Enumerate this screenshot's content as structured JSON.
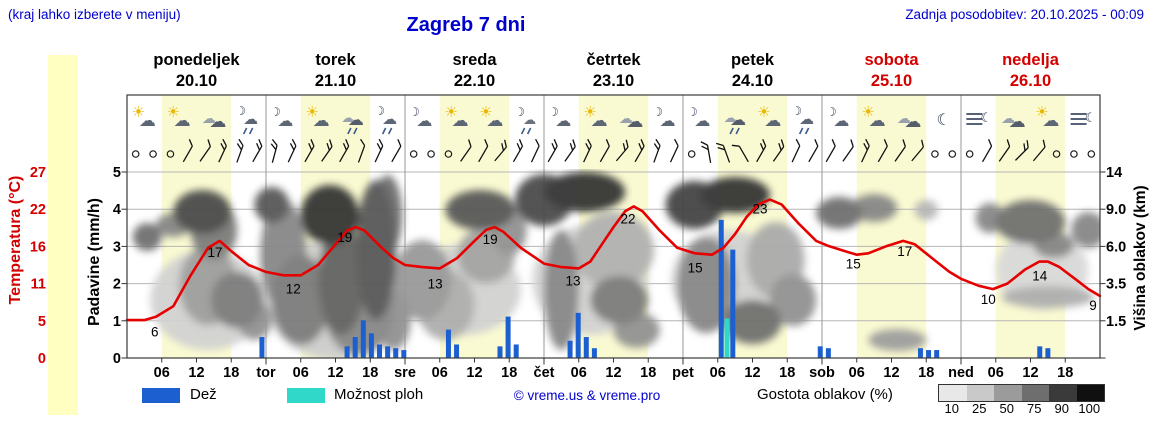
{
  "header": {
    "hint": "(kraj lahko izberete v meniju)",
    "title": "Zagreb 7 dni",
    "updated": "Zadnja posodobitev: 20.10.2025 - 00:09"
  },
  "days": [
    {
      "name": "ponedeljek",
      "date": "20.10",
      "weekend": false
    },
    {
      "name": "torek",
      "date": "21.10",
      "weekend": false
    },
    {
      "name": "sreda",
      "date": "22.10",
      "weekend": false
    },
    {
      "name": "četrtek",
      "date": "23.10",
      "weekend": false
    },
    {
      "name": "petek",
      "date": "24.10",
      "weekend": false
    },
    {
      "name": "sobota",
      "date": "25.10",
      "weekend": true
    },
    {
      "name": "nedelja",
      "date": "26.10",
      "weekend": true
    }
  ],
  "axis_titles": {
    "temperature": "Temperatura (°C)",
    "precipitation": "Padavine (mm/h)",
    "cloud_height": "Višina oblakov (km)"
  },
  "legend": {
    "rain_label": "Dež",
    "shower_label": "Možnost ploh",
    "copyright": "© vreme.us & vreme.pro",
    "cloud_label": "Gostota oblakov (%)",
    "cloud_scale": [
      {
        "label": "10",
        "color": "#e8e8e8"
      },
      {
        "label": "25",
        "color": "#c9c9c9"
      },
      {
        "label": "50",
        "color": "#9b9b9b"
      },
      {
        "label": "75",
        "color": "#6e6e6e"
      },
      {
        "label": "90",
        "color": "#3a3a3a"
      },
      {
        "label": "100",
        "color": "#101010"
      }
    ]
  },
  "colors": {
    "link_blue": "#0000cd",
    "weekend_red": "#d40000",
    "temp_line": "#e60000",
    "rain_bar": "#1c5fd0",
    "shower_bar": "#2fd8c8",
    "day_band": "#fafad2",
    "left_strip": "#ffffc2"
  },
  "chart_data": [
    {
      "type": "line",
      "name": "temperature",
      "unit": "°C",
      "ylim": [
        0,
        27
      ],
      "axis_ticks": [
        27,
        22,
        16,
        11,
        5,
        0
      ],
      "points": [
        [
          0,
          5.5
        ],
        [
          3,
          5.5
        ],
        [
          5,
          6
        ],
        [
          8,
          7.5
        ],
        [
          11,
          12
        ],
        [
          14,
          16
        ],
        [
          16,
          17
        ],
        [
          18,
          15.5
        ],
        [
          21,
          13.5
        ],
        [
          24,
          12.5
        ],
        [
          27,
          12
        ],
        [
          30,
          12
        ],
        [
          33,
          13.5
        ],
        [
          36,
          16.5
        ],
        [
          38,
          18.5
        ],
        [
          39.5,
          19
        ],
        [
          41,
          18.5
        ],
        [
          44,
          16
        ],
        [
          46,
          14.5
        ],
        [
          48,
          13.5
        ],
        [
          51,
          13.2
        ],
        [
          54,
          13
        ],
        [
          57,
          14.5
        ],
        [
          60,
          17
        ],
        [
          62,
          18.6
        ],
        [
          63.5,
          19
        ],
        [
          65,
          18.3
        ],
        [
          68,
          16
        ],
        [
          72,
          13.7
        ],
        [
          75,
          13.2
        ],
        [
          78,
          13
        ],
        [
          80,
          14
        ],
        [
          82,
          16.5
        ],
        [
          84,
          19
        ],
        [
          86,
          21.3
        ],
        [
          87.5,
          22
        ],
        [
          89,
          21.3
        ],
        [
          92,
          18.5
        ],
        [
          95,
          16
        ],
        [
          98,
          15.2
        ],
        [
          101,
          15
        ],
        [
          103,
          16
        ],
        [
          105,
          18
        ],
        [
          107,
          20.5
        ],
        [
          109,
          22.3
        ],
        [
          111,
          23
        ],
        [
          113,
          22.3
        ],
        [
          116,
          19.5
        ],
        [
          119,
          17
        ],
        [
          121,
          16.3
        ],
        [
          124,
          15.5
        ],
        [
          126,
          15
        ],
        [
          128,
          15.2
        ],
        [
          131,
          16.2
        ],
        [
          134,
          17
        ],
        [
          136,
          16.5
        ],
        [
          139,
          14.5
        ],
        [
          142,
          12.5
        ],
        [
          144,
          11.5
        ],
        [
          147,
          10.5
        ],
        [
          149.5,
          10
        ],
        [
          152,
          10.8
        ],
        [
          155,
          12.8
        ],
        [
          157.5,
          14
        ],
        [
          159,
          14
        ],
        [
          161,
          13.2
        ],
        [
          164,
          11.3
        ],
        [
          166,
          10
        ],
        [
          168,
          9
        ]
      ],
      "labels": [
        [
          4.8,
          6,
          20
        ],
        [
          15.2,
          17,
          16
        ],
        [
          28.7,
          12,
          18
        ],
        [
          37.6,
          19,
          15
        ],
        [
          53.2,
          13,
          20
        ],
        [
          62.7,
          19,
          17
        ],
        [
          77,
          13,
          17
        ],
        [
          86.5,
          22,
          17
        ],
        [
          98.1,
          15,
          18
        ],
        [
          109.3,
          23,
          14
        ],
        [
          125.4,
          15,
          14
        ],
        [
          134.3,
          17,
          15
        ],
        [
          148.7,
          10,
          15
        ],
        [
          157.6,
          14,
          19
        ],
        [
          166.8,
          9,
          14
        ]
      ]
    },
    {
      "type": "bar",
      "name": "precipitation",
      "unit": "mm/h",
      "ylim": [
        0,
        5
      ],
      "axis_ticks": [
        5,
        4,
        3,
        2,
        1,
        0
      ],
      "bars": [
        [
          23.3,
          0.55,
          "rain"
        ],
        [
          38,
          0.3,
          "rain"
        ],
        [
          39.4,
          0.55,
          "rain"
        ],
        [
          40.8,
          1.0,
          "rain"
        ],
        [
          42.2,
          0.65,
          "rain"
        ],
        [
          43.6,
          0.35,
          "rain"
        ],
        [
          45,
          0.3,
          "rain"
        ],
        [
          46.4,
          0.25,
          "rain"
        ],
        [
          47.8,
          0.2,
          "rain"
        ],
        [
          55.5,
          0.75,
          "rain"
        ],
        [
          56.9,
          0.35,
          "rain"
        ],
        [
          64.4,
          0.3,
          "rain"
        ],
        [
          65.8,
          1.1,
          "rain"
        ],
        [
          67.2,
          0.35,
          "rain"
        ],
        [
          76.5,
          0.45,
          "rain"
        ],
        [
          77.9,
          1.2,
          "rain"
        ],
        [
          79.3,
          0.55,
          "rain"
        ],
        [
          80.7,
          0.25,
          "rain"
        ],
        [
          102.6,
          3.7,
          "rain"
        ],
        [
          103.6,
          1.05,
          "shower"
        ],
        [
          104.6,
          2.9,
          "rain"
        ],
        [
          119.7,
          0.3,
          "rain"
        ],
        [
          121.1,
          0.25,
          "rain"
        ],
        [
          137,
          0.25,
          "rain"
        ],
        [
          138.4,
          0.2,
          "rain"
        ],
        [
          139.8,
          0.2,
          "rain"
        ],
        [
          157.6,
          0.3,
          "rain"
        ],
        [
          159,
          0.25,
          "rain"
        ]
      ]
    },
    {
      "type": "heatmap",
      "name": "cloud_cover",
      "unit": "%",
      "height_axis_ticks": [
        "14",
        "9.0",
        "6.0",
        "3.5",
        "1.5"
      ],
      "levels_pct": [
        10,
        25,
        50,
        75,
        90,
        100
      ],
      "blobs": [
        [
          14,
          300,
          10,
          50,
          0.18
        ],
        [
          36,
          300,
          12,
          60,
          0.2
        ],
        [
          58,
          290,
          10,
          45,
          0.18
        ],
        [
          80,
          280,
          10,
          55,
          0.18
        ],
        [
          104,
          280,
          10,
          50,
          0.18
        ],
        [
          158,
          270,
          8,
          40,
          0.15
        ],
        [
          3.5,
          237,
          2.5,
          14,
          0.6
        ],
        [
          8,
          225,
          3,
          12,
          0.5
        ],
        [
          13,
          212,
          5,
          22,
          0.75
        ],
        [
          15,
          230,
          4,
          30,
          0.55
        ],
        [
          14,
          285,
          5,
          40,
          0.4
        ],
        [
          19,
          300,
          4.5,
          28,
          0.55
        ],
        [
          22,
          320,
          3,
          20,
          0.45
        ],
        [
          25,
          205,
          3,
          18,
          0.7
        ],
        [
          27,
          255,
          4,
          55,
          0.5
        ],
        [
          30,
          300,
          5,
          45,
          0.55
        ],
        [
          35,
          215,
          5,
          30,
          0.85
        ],
        [
          37,
          280,
          4,
          55,
          0.65
        ],
        [
          40,
          310,
          6,
          45,
          0.5
        ],
        [
          43,
          250,
          3.5,
          70,
          0.7
        ],
        [
          45,
          215,
          2.5,
          40,
          0.6
        ],
        [
          46,
          320,
          3,
          30,
          0.45
        ],
        [
          51,
          280,
          5,
          40,
          0.42
        ],
        [
          55,
          305,
          5,
          35,
          0.33
        ],
        [
          61,
          210,
          6,
          20,
          0.7
        ],
        [
          62,
          255,
          5,
          28,
          0.38
        ],
        [
          66,
          230,
          3,
          25,
          0.45
        ],
        [
          72,
          200,
          5,
          26,
          0.75
        ],
        [
          79,
          192,
          7,
          20,
          0.85
        ],
        [
          75,
          290,
          3,
          60,
          0.5
        ],
        [
          84,
          250,
          7,
          38,
          0.32
        ],
        [
          85,
          300,
          5,
          24,
          0.55
        ],
        [
          88,
          330,
          4,
          18,
          0.45
        ],
        [
          98,
          205,
          5,
          24,
          0.78
        ],
        [
          105,
          195,
          6,
          18,
          0.85
        ],
        [
          100,
          285,
          5,
          48,
          0.5
        ],
        [
          108,
          322,
          5,
          22,
          0.6
        ],
        [
          112,
          260,
          5,
          38,
          0.35
        ],
        [
          115,
          300,
          4,
          26,
          0.45
        ],
        [
          123,
          213,
          4,
          16,
          0.6
        ],
        [
          129,
          208,
          4,
          14,
          0.5
        ],
        [
          133,
          340,
          5,
          11,
          0.4
        ],
        [
          138,
          210,
          2,
          10,
          0.3
        ],
        [
          149,
          218,
          2.5,
          15,
          0.5
        ],
        [
          156,
          222,
          6,
          22,
          0.6
        ],
        [
          160,
          245,
          3.5,
          13,
          0.5
        ],
        [
          159,
          297,
          8,
          11,
          0.33
        ],
        [
          166,
          230,
          3,
          18,
          0.5
        ]
      ]
    },
    {
      "type": "table",
      "name": "weather_icons",
      "slots_hours_step": 6,
      "icons": [
        "sun-cloud",
        "sun-cloud",
        "cloud",
        "moon-cloud-rain",
        "moon-cloud",
        "sun-cloud",
        "cloud-rain",
        "moon-cloud-rain",
        "moon-cloud",
        "sun-cloud",
        "sun-cloud",
        "moon-rain",
        "moon-cloud",
        "sun-cloud",
        "cloud",
        "moon-cloud",
        "moon-cloud",
        "cloud-rain",
        "sun-cloud",
        "moon-cloud-rain",
        "moon-cloud",
        "sun-cloud",
        "cloud",
        "moon",
        "fog-moon",
        "cloud",
        "sun-cloud",
        "fog-moon"
      ]
    },
    {
      "type": "table",
      "name": "wind",
      "slots_hours_step": 3,
      "symbols": [
        "c",
        "c",
        "c",
        "60:1",
        "55:1",
        "65:2",
        "70:2",
        "60:2",
        "75:2",
        "65:2",
        "60:2",
        "55:2",
        "60:2",
        "70:1",
        "65:2",
        "60:1",
        "c",
        "c",
        "c",
        "55:1",
        "60:1",
        "50:2",
        "60:2",
        "65:1",
        "60:2",
        "55:2",
        "65:2",
        "60:1",
        "50:2",
        "60:2",
        "70:2",
        "65:1",
        "c",
        "100:2",
        "110:2",
        "120:1",
        "60:2",
        "55:2",
        "65:1",
        "60:1",
        "60:1",
        "55:1",
        "65:2",
        "60:1",
        "55:1",
        "50:1",
        "c",
        "c",
        "c",
        "60:1",
        "55:1",
        "45:2",
        "50:1",
        "c",
        "c",
        "c"
      ]
    },
    {
      "type": "table",
      "name": "x_axis",
      "hour_labels": [
        "06",
        "12",
        "18"
      ],
      "day_abbrevs": [
        "tor",
        "sre",
        "čet",
        "pet",
        "sob",
        "ned"
      ]
    }
  ]
}
